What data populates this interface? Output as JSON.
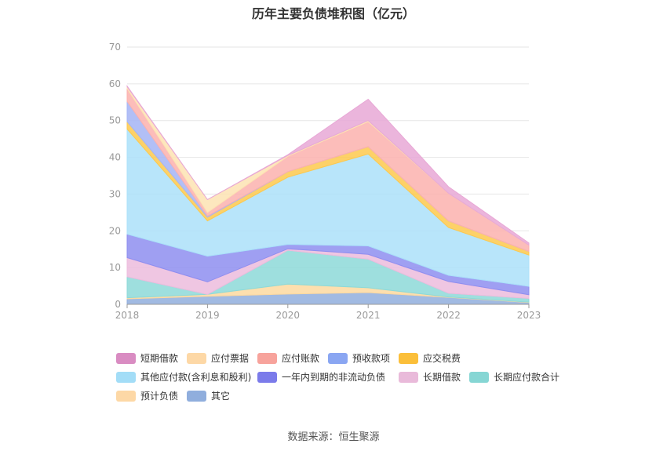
{
  "chart_data": {
    "type": "area",
    "stacked": true,
    "title": "历年主要负债堆积图（亿元）",
    "categories": [
      "2018",
      "2019",
      "2020",
      "2021",
      "2022",
      "2023"
    ],
    "ylim": [
      0,
      70
    ],
    "yticks": [
      0,
      10,
      20,
      30,
      40,
      50,
      60,
      70
    ],
    "grid": true,
    "legend_position": "bottom",
    "series": [
      {
        "name": "其它",
        "color": "#90aedd",
        "values": [
          1.5,
          2.2,
          2.8,
          3.2,
          1.9,
          0.5
        ]
      },
      {
        "name": "预计负债",
        "color": "#fdd9a0",
        "values": [
          0.3,
          0.5,
          2.7,
          1.3,
          0.1,
          0.1
        ]
      },
      {
        "name": "长期应付款合计",
        "color": "#8dd9d8",
        "values": [
          5.7,
          0,
          9.2,
          7.8,
          1.0,
          1.0
        ]
      },
      {
        "name": "长期借款",
        "color": "#ecbcdd",
        "values": [
          5.2,
          3.4,
          0.4,
          1.3,
          3.2,
          1.0
        ]
      },
      {
        "name": "一年内到期的非流动负债",
        "color": "#8e8ef0",
        "values": [
          6.4,
          7.0,
          1.2,
          2.3,
          1.7,
          2.3
        ]
      },
      {
        "name": "其他应付款(含利息和股利)",
        "color": "#abe1f9",
        "values": [
          28.6,
          9.6,
          18.3,
          25.0,
          13.0,
          8.5
        ]
      },
      {
        "name": "应交税费",
        "color": "#fdc94e",
        "values": [
          2.0,
          1.0,
          1.5,
          2.0,
          1.8,
          1.0
        ]
      },
      {
        "name": "预收款项",
        "color": "#a5b4f5",
        "values": [
          5.5,
          0.3,
          0,
          0,
          0,
          0
        ]
      },
      {
        "name": "应付账款",
        "color": "#fcb1ae",
        "values": [
          3.5,
          1.0,
          4.2,
          6.8,
          7.5,
          1.7
        ]
      },
      {
        "name": "应付票据",
        "color": "#fde3b3",
        "values": [
          0.5,
          3.5,
          0.2,
          0.3,
          0,
          0
        ]
      },
      {
        "name": "短期借款",
        "color": "#e8a8d6",
        "values": [
          0.2,
          0,
          0.2,
          5.8,
          1.8,
          0.6
        ]
      }
    ],
    "legend_order": [
      "短期借款",
      "应付票据",
      "应付账款",
      "预收款项",
      "应交税费",
      "其他应付款(含利息和股利)",
      "一年内到期的非流动负债",
      "长期借款",
      "长期应付款合计",
      "预计负债",
      "其它"
    ],
    "legend_swatch_colors": {
      "短期借款": "#d98cc2",
      "应付票据": "#fdd8a6",
      "应付账款": "#f7a39c",
      "预收款项": "#8aa6f2",
      "应交税费": "#fbbf3a",
      "其他应付款(含利息和股利)": "#a3ddf7",
      "一年内到期的非流动负债": "#7b7bea",
      "长期借款": "#e9bada",
      "长期应付款合计": "#86d6d4",
      "预计负债": "#fdd8a6",
      "其它": "#90aedd"
    },
    "source": "数据来源：恒生聚源"
  }
}
